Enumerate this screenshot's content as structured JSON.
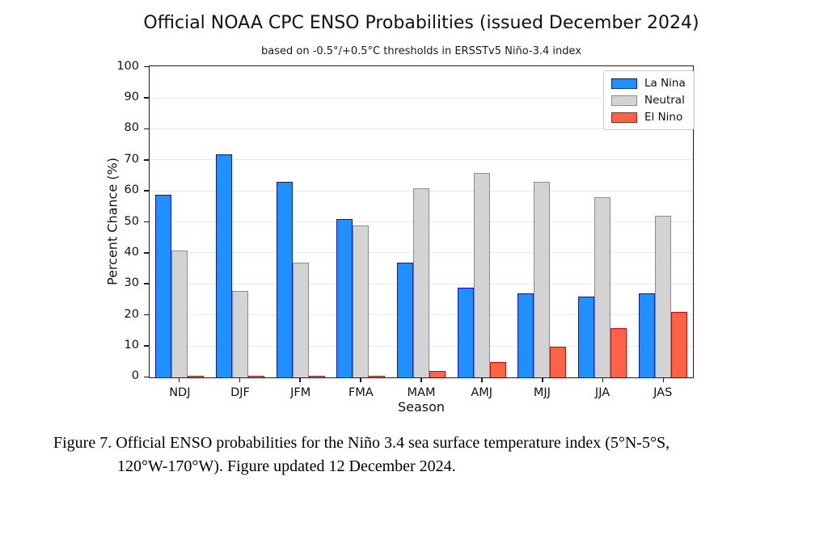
{
  "figure": {
    "title": "Official NOAA CPC ENSO Probabilities (issued December 2024)",
    "subtitle": "based on -0.5°/+0.5°C thresholds in ERSSTv5 Niño-3.4 index"
  },
  "chart_data": {
    "type": "bar",
    "title": "Official NOAA CPC ENSO Probabilities (issued December 2024)",
    "subtitle": "based on -0.5°/+0.5°C thresholds in ERSSTv5 Niño-3.4 index",
    "xlabel": "Season",
    "ylabel": "Percent Chance (%)",
    "ylim": [
      0,
      100
    ],
    "yticks": [
      0,
      10,
      20,
      30,
      40,
      50,
      60,
      70,
      80,
      90,
      100
    ],
    "grid": true,
    "legend_position": "upper right",
    "categories": [
      "NDJ",
      "DJF",
      "JFM",
      "FMA",
      "MAM",
      "AMJ",
      "MJJ",
      "JJA",
      "JAS"
    ],
    "series": [
      {
        "name": "La Nina",
        "color": "#1E90FF",
        "edge": "#0B0BEB",
        "values": [
          59,
          72,
          63,
          51,
          37,
          29,
          27,
          26,
          27
        ]
      },
      {
        "name": "Neutral",
        "color": "#D3D3D3",
        "edge": "#8C8C8C",
        "values": [
          41,
          28,
          37,
          49,
          61,
          66,
          63,
          58,
          52
        ]
      },
      {
        "name": "El Nino",
        "color": "#FF6347",
        "edge": "#EE0000",
        "values": [
          0,
          0,
          0,
          0,
          2,
          5,
          10,
          16,
          21
        ]
      }
    ]
  },
  "caption": {
    "line1": "Figure 7. Official ENSO probabilities for the Niño 3.4 sea surface temperature index (5°N-5°S,",
    "line2": "120°W-170°W). Figure updated 12 December 2024."
  }
}
